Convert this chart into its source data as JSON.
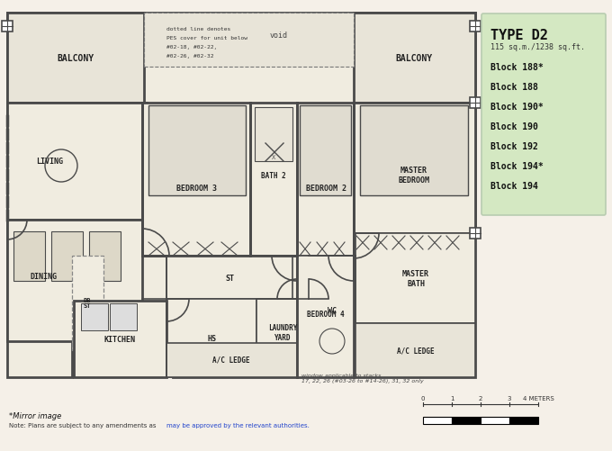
{
  "bg_color": "#f5f0e8",
  "wall_color": "#4a4a4a",
  "room_fill": "#f0ece0",
  "balcony_fill": "#e8e4d8",
  "info_box_color": "#d4e8c2",
  "info_box_edge": "#b8ccb0",
  "type_label": "TYPE D2",
  "size_label": "115 sq.m./1238 sq.ft.",
  "blocks": [
    "Block 188*",
    "Block 188",
    "Block 190*",
    "Block 190",
    "Block 192",
    "Block 194*",
    "Block 194"
  ],
  "mirror_note": "*Mirror image",
  "note_black": "Note: Plans are subject to any amendments as ",
  "note_blue": "may be approved by the relevant authorities.",
  "window_note": "window applicable to stacks\n17, 22, 26 (#03-26 to #14-26), 31, 32 only",
  "void_label": "void",
  "dotted_note": "dotted line denotes\nPES cover for unit below\n#02-18, #02-22,\n#02-26, #02-32",
  "figw": 6.8,
  "figh": 5.02,
  "dpi": 100
}
